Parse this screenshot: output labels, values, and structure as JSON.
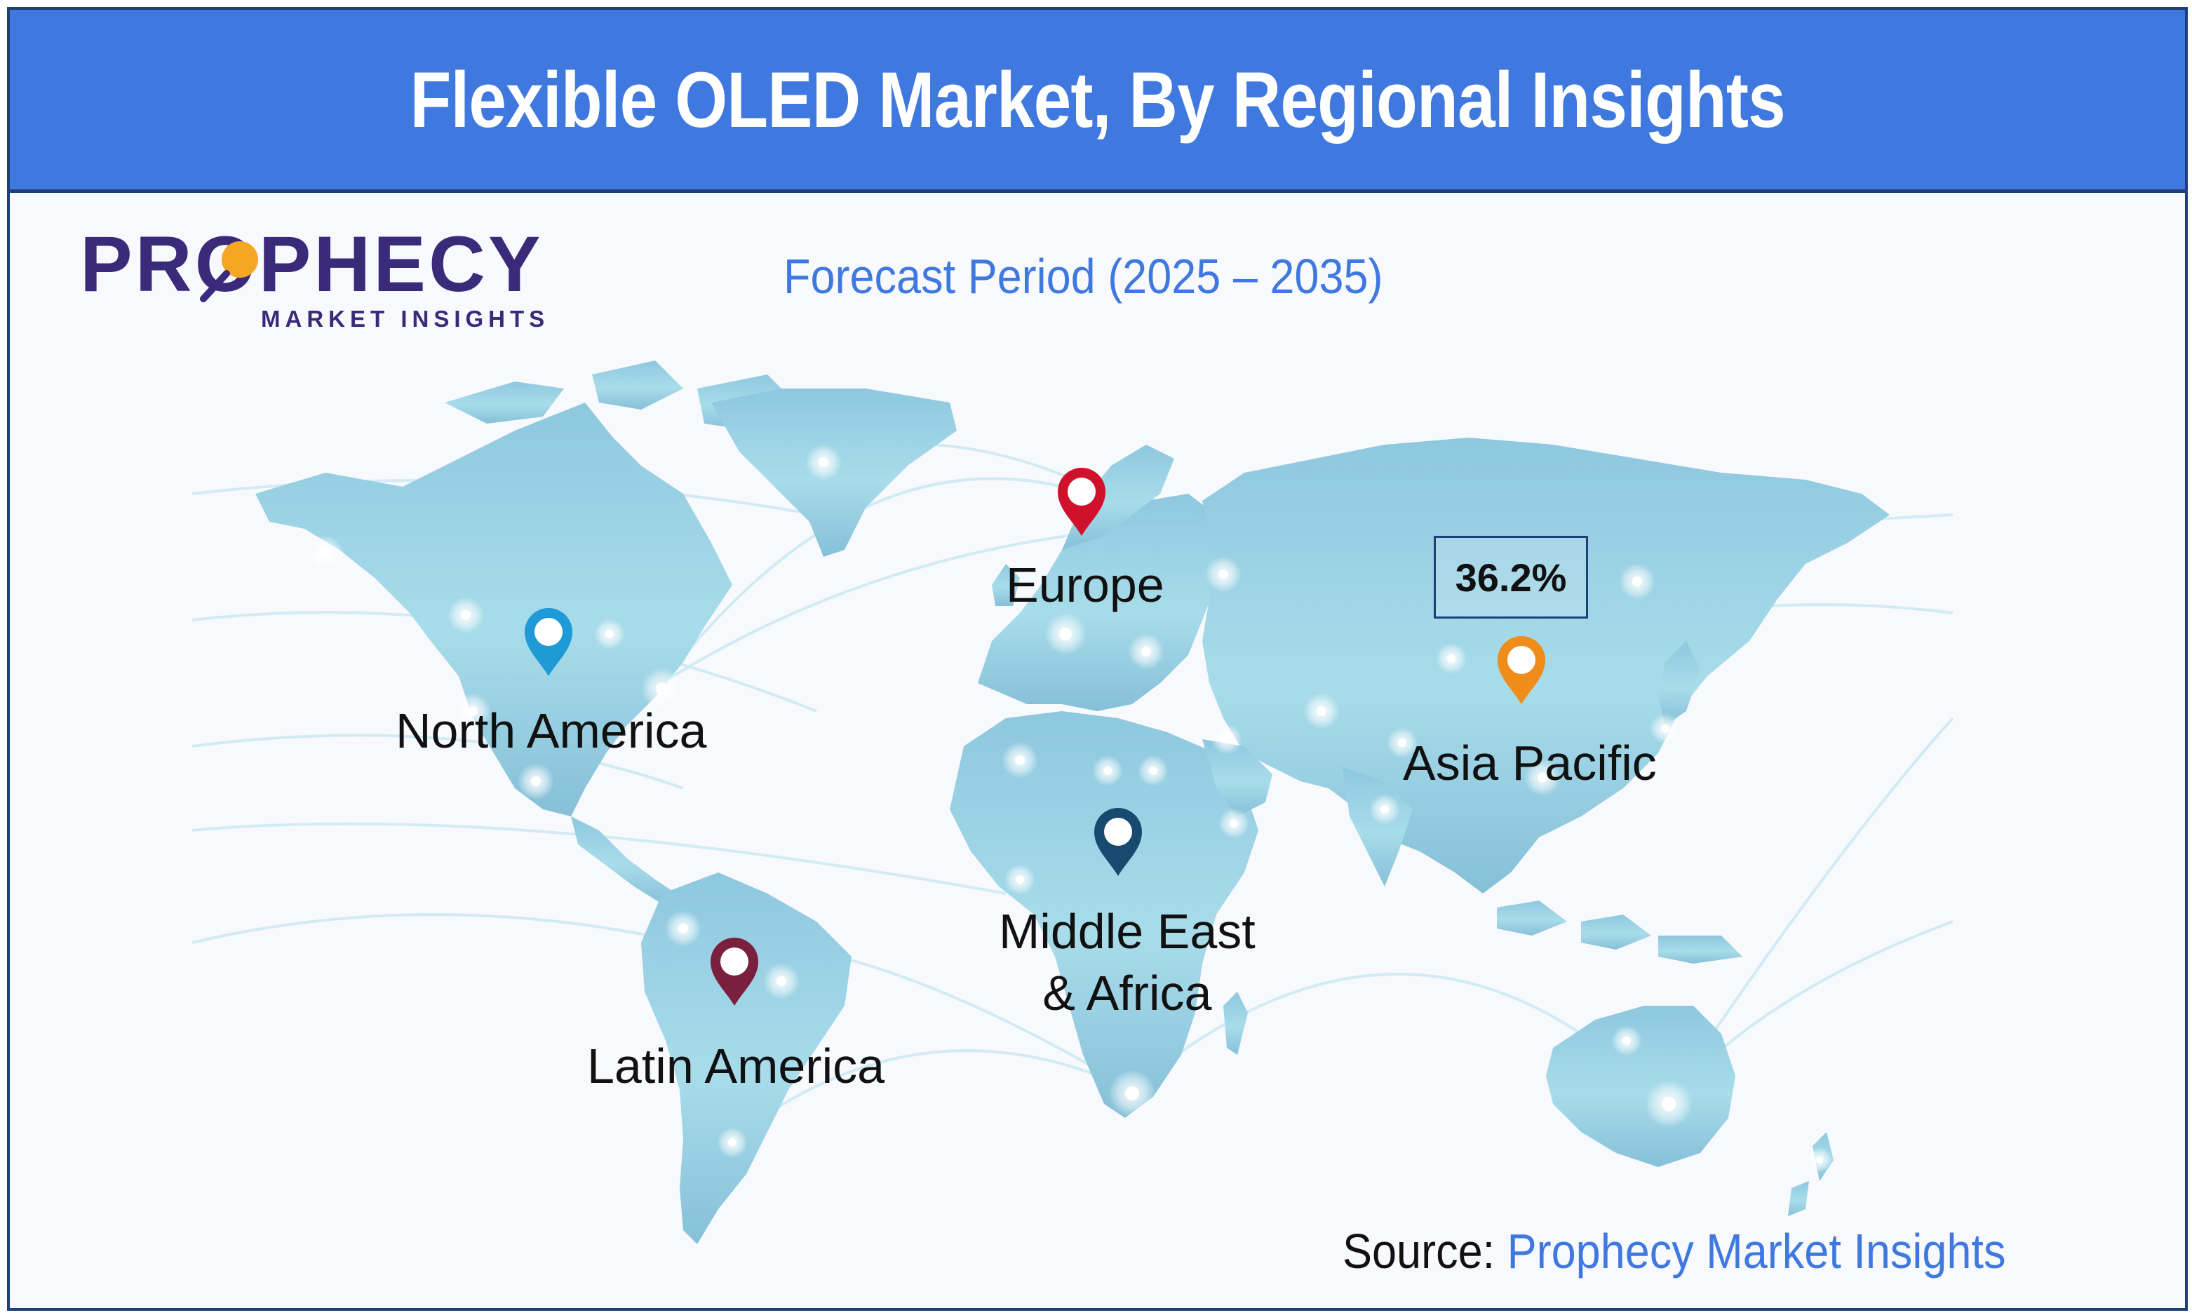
{
  "title": "Flexible OLED Market, By Regional Insights",
  "logo": {
    "name": "PROPHECY",
    "tagline": "MARKET INSIGHTS",
    "brand_color": "#3a2a7a",
    "accent": "#f5a623"
  },
  "forecast_period": "Forecast Period (2025 – 2035)",
  "regions": [
    {
      "name": "North America",
      "pin_color": "#1e9ad6"
    },
    {
      "name": "Europe",
      "pin_color": "#d0112b"
    },
    {
      "name": "Asia Pacific",
      "pin_color": "#f08c1a"
    },
    {
      "name": "Middle East & Africa",
      "name_line1": "Middle East",
      "name_line2": "& Africa",
      "pin_color": "#174a6e"
    },
    {
      "name": "Latin America",
      "pin_color": "#7a1f3d"
    }
  ],
  "highlight": {
    "region": "Asia Pacific",
    "value": "36.2%"
  },
  "source": {
    "label": "Source: ",
    "name": "Prophecy Market Insights"
  },
  "colors": {
    "banner": "#3f79e0",
    "border": "#1f3f78",
    "map_fill": "#9fd3e6",
    "accent_text": "#3f79e0"
  }
}
